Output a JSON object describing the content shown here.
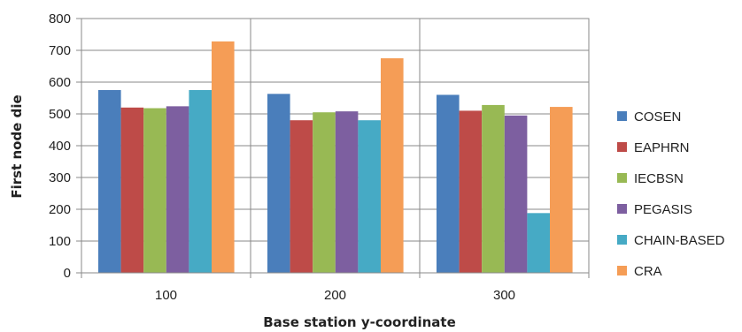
{
  "chart_data": {
    "type": "bar",
    "title": "",
    "xlabel": "Base station y-coordinate",
    "ylabel": "First node die",
    "categories": [
      "100",
      "200",
      "300"
    ],
    "ylim": [
      0,
      800
    ],
    "yticks": [
      0,
      100,
      200,
      300,
      400,
      500,
      600,
      700,
      800
    ],
    "grid": "horizontal",
    "legend_position": "right",
    "series": [
      {
        "name": "COSEN",
        "color": "#4a7ebb",
        "values": [
          575,
          563,
          560
        ]
      },
      {
        "name": "EAPHRN",
        "color": "#be4b48",
        "values": [
          520,
          480,
          510
        ]
      },
      {
        "name": "IECBSN",
        "color": "#98b954",
        "values": [
          518,
          505,
          528
        ]
      },
      {
        "name": "PEGASIS",
        "color": "#7d5fa0",
        "values": [
          524,
          508,
          495
        ]
      },
      {
        "name": "CHAIN-BASED",
        "color": "#46aac5",
        "values": [
          575,
          480,
          188
        ]
      },
      {
        "name": "CRA",
        "color": "#f59d56",
        "values": [
          728,
          675,
          522
        ]
      }
    ]
  }
}
